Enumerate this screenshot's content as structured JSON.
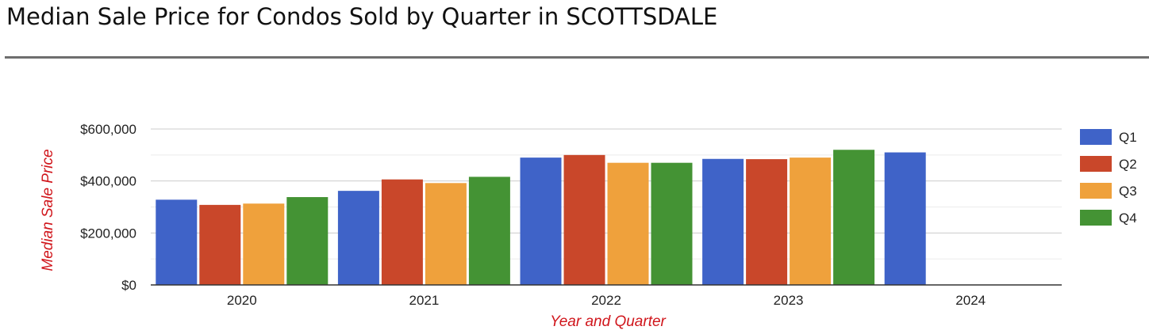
{
  "page": {
    "title": "Median Sale Price for Condos Sold by Quarter in SCOTTSDALE"
  },
  "chart_data": {
    "type": "bar",
    "title": "Median Sale Price for Condos Sold by Quarter in SCOTTSDALE",
    "xlabel": "Year and Quarter",
    "ylabel": "Median Sale Price",
    "categories": [
      "2020",
      "2021",
      "2022",
      "2023",
      "2024"
    ],
    "series": [
      {
        "name": "Q1",
        "color": "#3f63c8",
        "values": [
          328000,
          362000,
          490000,
          485000,
          510000
        ]
      },
      {
        "name": "Q2",
        "color": "#c9472a",
        "values": [
          308000,
          406000,
          500000,
          484000,
          null
        ]
      },
      {
        "name": "Q3",
        "color": "#efa13c",
        "values": [
          313000,
          392000,
          470000,
          490000,
          null
        ]
      },
      {
        "name": "Q4",
        "color": "#449334",
        "values": [
          338000,
          416000,
          470000,
          520000,
          null
        ]
      }
    ],
    "y_ticks": [
      {
        "value": 0,
        "label": "$0"
      },
      {
        "value": 200000,
        "label": "$200,000"
      },
      {
        "value": 400000,
        "label": "$400,000"
      },
      {
        "value": 600000,
        "label": "$600,000"
      }
    ],
    "ylim": [
      0,
      600000
    ],
    "minor_gridlines": true,
    "legend_position": "right",
    "axis_title_color": "#d0151b"
  }
}
